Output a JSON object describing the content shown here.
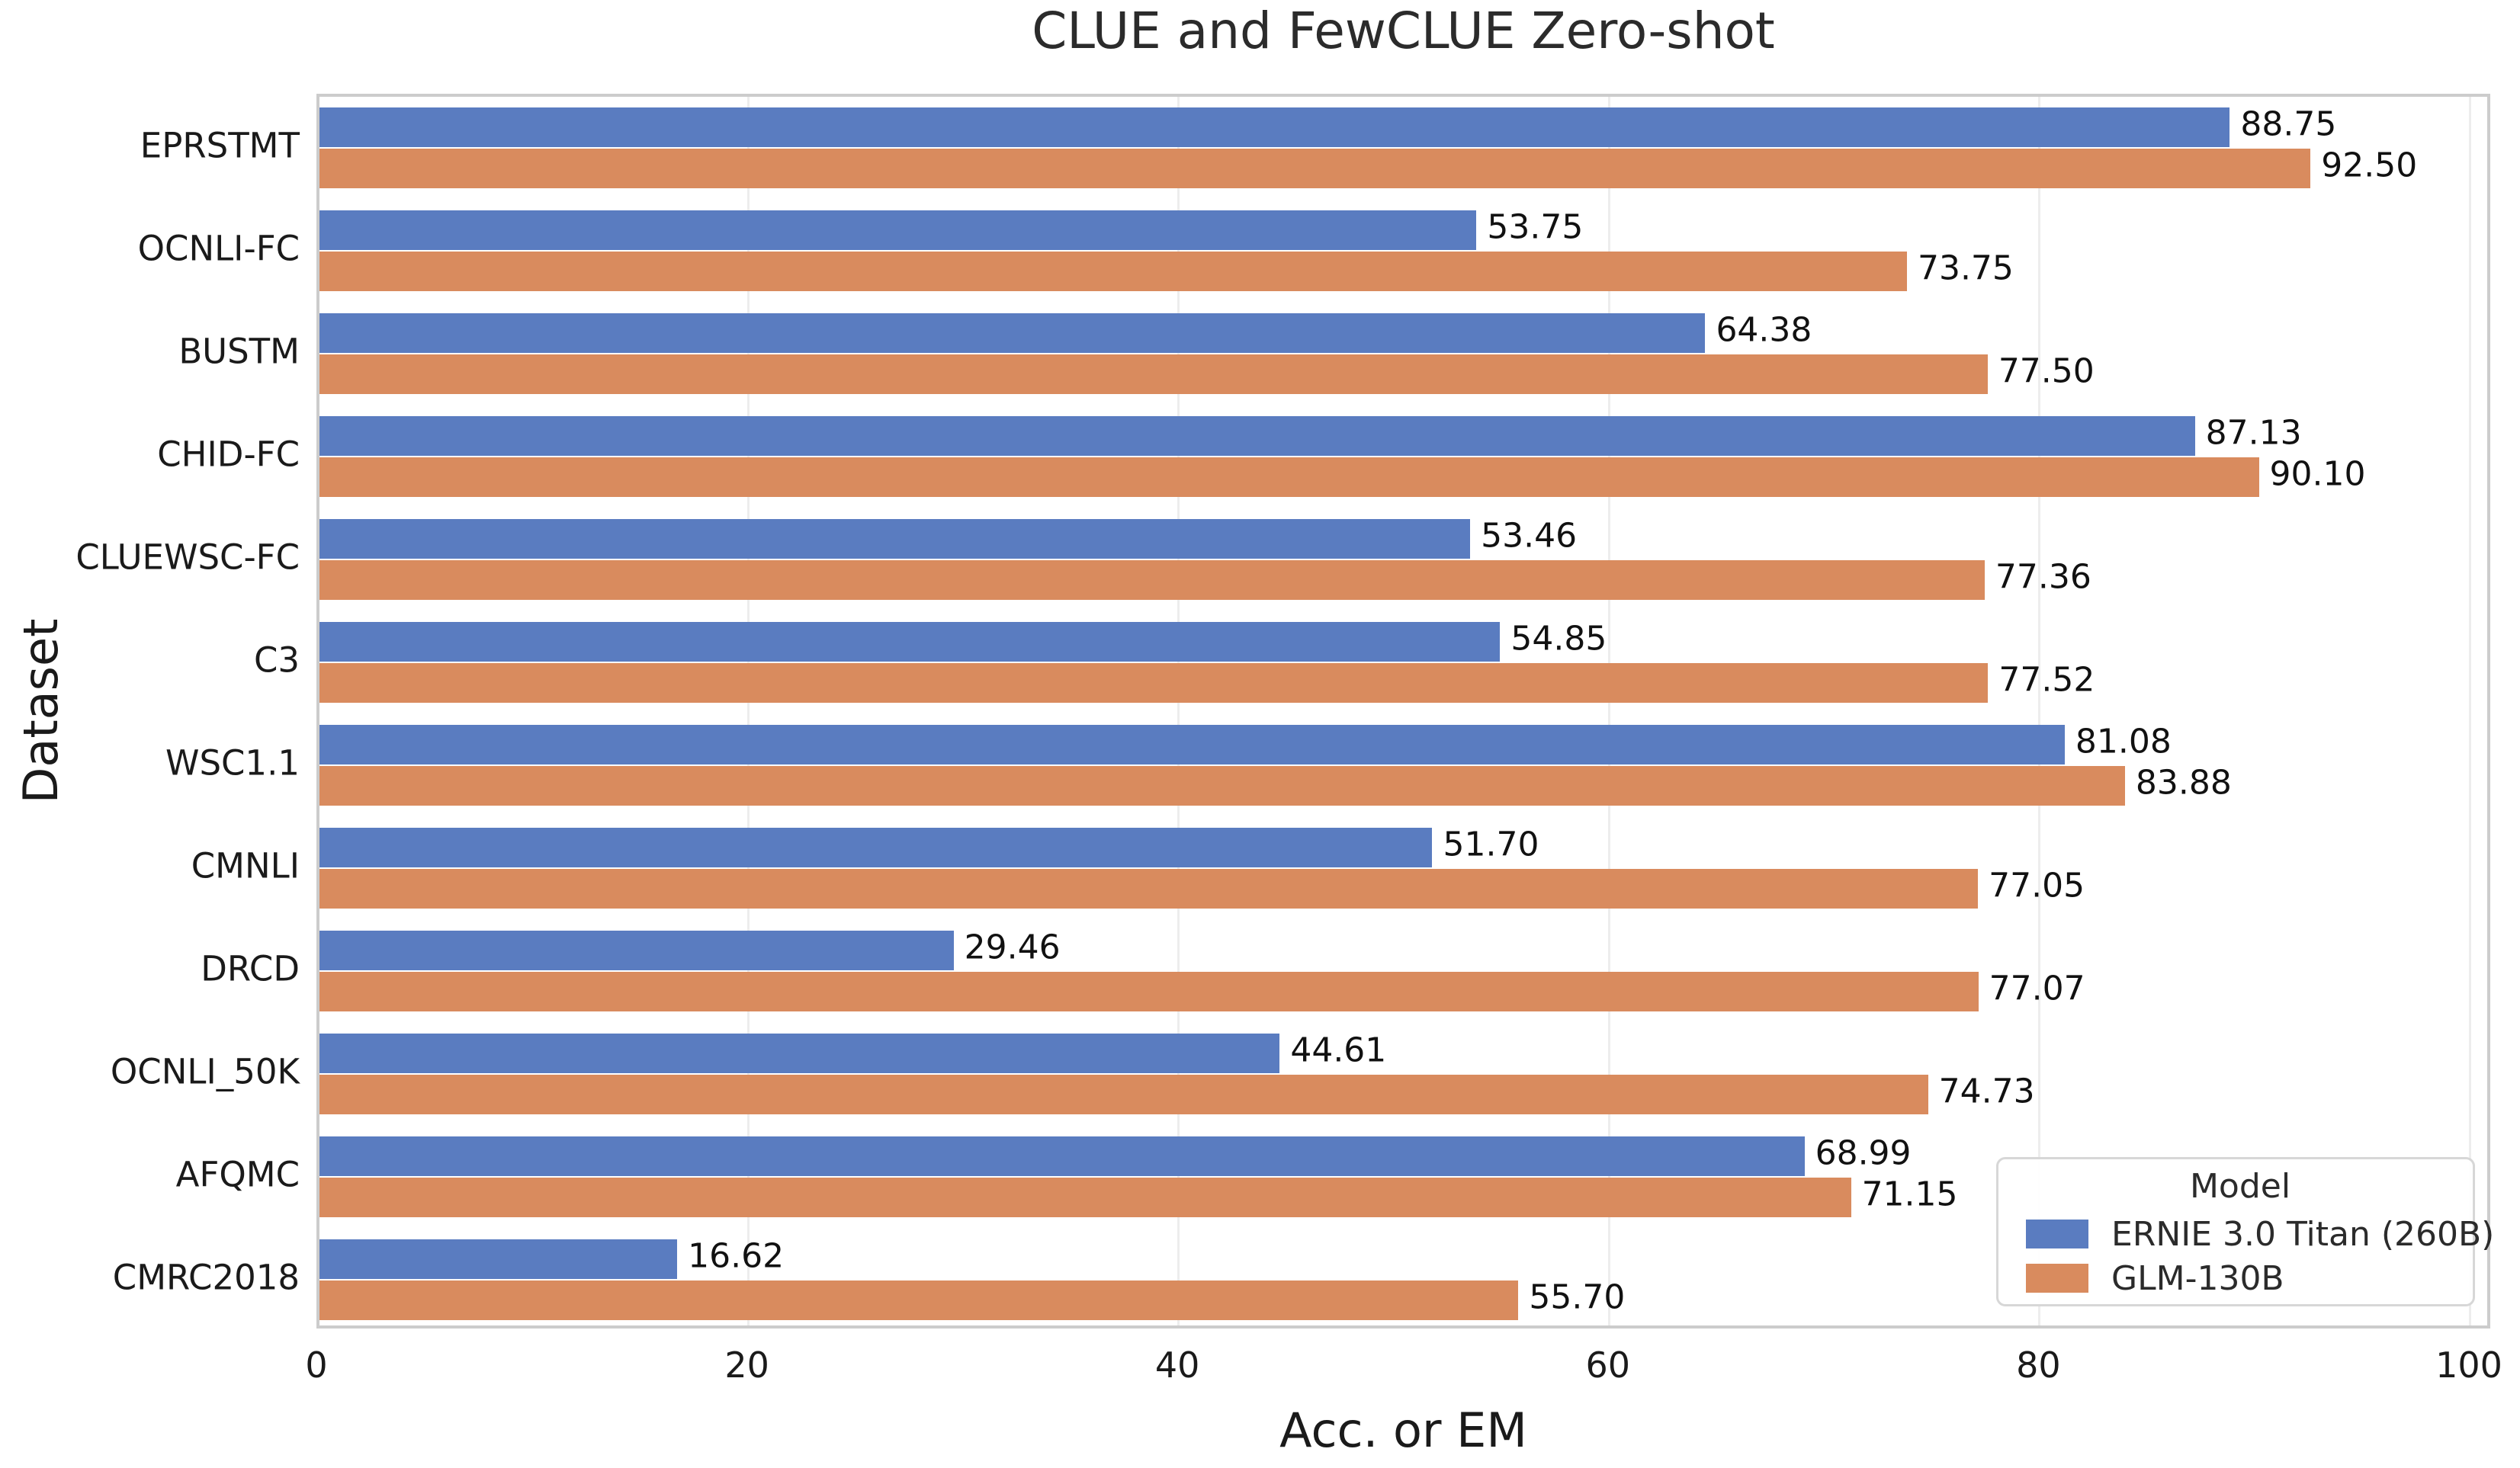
{
  "chart_data": {
    "type": "bar",
    "orientation": "horizontal",
    "title": "CLUE and FewCLUE Zero-shot",
    "xlabel": "Acc. or EM",
    "ylabel": "Dataset",
    "xlim": [
      0,
      101
    ],
    "xticks": [
      0,
      20,
      40,
      60,
      80,
      100
    ],
    "grid": "vertical-light",
    "categories": [
      "EPRSTMT",
      "OCNLI-FC",
      "BUSTM",
      "CHID-FC",
      "CLUEWSC-FC",
      "C3",
      "WSC1.1",
      "CMNLI",
      "DRCD",
      "OCNLI_50K",
      "AFQMC",
      "CMRC2018"
    ],
    "series": [
      {
        "name": "ERNIE 3.0 Titan (260B)",
        "color": "#5a7cc0",
        "values": [
          88.75,
          53.75,
          64.38,
          87.13,
          53.46,
          54.85,
          81.08,
          51.7,
          29.46,
          44.61,
          68.99,
          16.62
        ]
      },
      {
        "name": "GLM-130B",
        "color": "#d98b5e",
        "values": [
          92.5,
          73.75,
          77.5,
          90.1,
          77.36,
          77.52,
          83.88,
          77.05,
          77.07,
          74.73,
          71.15,
          55.7
        ]
      }
    ],
    "value_label_decimals": 2,
    "legend": {
      "title": "Model",
      "position": "lower right"
    }
  }
}
